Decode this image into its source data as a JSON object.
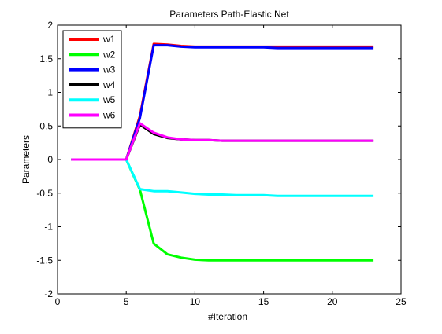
{
  "chart_data": {
    "type": "line",
    "title": "Parameters Path-Elastic Net",
    "xlabel": "#Iteration",
    "ylabel": "Parameters",
    "xlim": [
      0,
      25
    ],
    "ylim": [
      -2,
      2
    ],
    "xticks": [
      0,
      5,
      10,
      15,
      20,
      25
    ],
    "yticks": [
      -2,
      -1.5,
      -1,
      -0.5,
      0,
      0.5,
      1,
      1.5,
      2
    ],
    "xtick_labels": [
      "0",
      "5",
      "10",
      "15",
      "20",
      "25"
    ],
    "ytick_labels": [
      "-2",
      "-1.5",
      "-1",
      "-0.5",
      "0",
      "0.5",
      "1",
      "1.5",
      "2"
    ],
    "grid": false,
    "legend_position": "top-left",
    "x": [
      1,
      2,
      3,
      4,
      5,
      6,
      7,
      8,
      9,
      10,
      11,
      12,
      13,
      14,
      15,
      16,
      17,
      18,
      19,
      20,
      21,
      22,
      23
    ],
    "series": [
      {
        "name": "w1",
        "color": "#ff0000",
        "values": [
          0,
          0,
          0,
          0,
          0,
          0.65,
          1.72,
          1.71,
          1.69,
          1.68,
          1.68,
          1.68,
          1.68,
          1.68,
          1.68,
          1.68,
          1.68,
          1.68,
          1.68,
          1.68,
          1.68,
          1.68,
          1.68
        ]
      },
      {
        "name": "w2",
        "color": "#00ff00",
        "values": [
          0,
          0,
          0,
          0,
          0,
          -0.45,
          -1.25,
          -1.41,
          -1.46,
          -1.49,
          -1.5,
          -1.5,
          -1.5,
          -1.5,
          -1.5,
          -1.5,
          -1.5,
          -1.5,
          -1.5,
          -1.5,
          -1.5,
          -1.5,
          -1.5
        ]
      },
      {
        "name": "w3",
        "color": "#0000ff",
        "values": [
          0,
          0,
          0,
          0,
          0,
          0.62,
          1.7,
          1.7,
          1.68,
          1.67,
          1.67,
          1.67,
          1.67,
          1.67,
          1.67,
          1.66,
          1.66,
          1.66,
          1.66,
          1.66,
          1.66,
          1.66,
          1.66
        ]
      },
      {
        "name": "w4",
        "color": "#000000",
        "values": [
          0,
          0,
          0,
          0,
          0,
          0.52,
          0.38,
          0.32,
          0.3,
          0.29,
          0.29,
          0.28,
          0.28,
          0.28,
          0.28,
          0.28,
          0.28,
          0.28,
          0.28,
          0.28,
          0.28,
          0.28,
          0.28
        ]
      },
      {
        "name": "w5",
        "color": "#00ffff",
        "values": [
          0,
          0,
          0,
          0,
          0,
          -0.44,
          -0.47,
          -0.47,
          -0.49,
          -0.51,
          -0.52,
          -0.52,
          -0.53,
          -0.53,
          -0.53,
          -0.54,
          -0.54,
          -0.54,
          -0.54,
          -0.54,
          -0.54,
          -0.54,
          -0.54
        ]
      },
      {
        "name": "w6",
        "color": "#ff00ff",
        "values": [
          0,
          0,
          0,
          0,
          0,
          0.54,
          0.4,
          0.33,
          0.3,
          0.29,
          0.29,
          0.28,
          0.28,
          0.28,
          0.28,
          0.28,
          0.28,
          0.28,
          0.28,
          0.28,
          0.28,
          0.28,
          0.28
        ]
      }
    ]
  }
}
